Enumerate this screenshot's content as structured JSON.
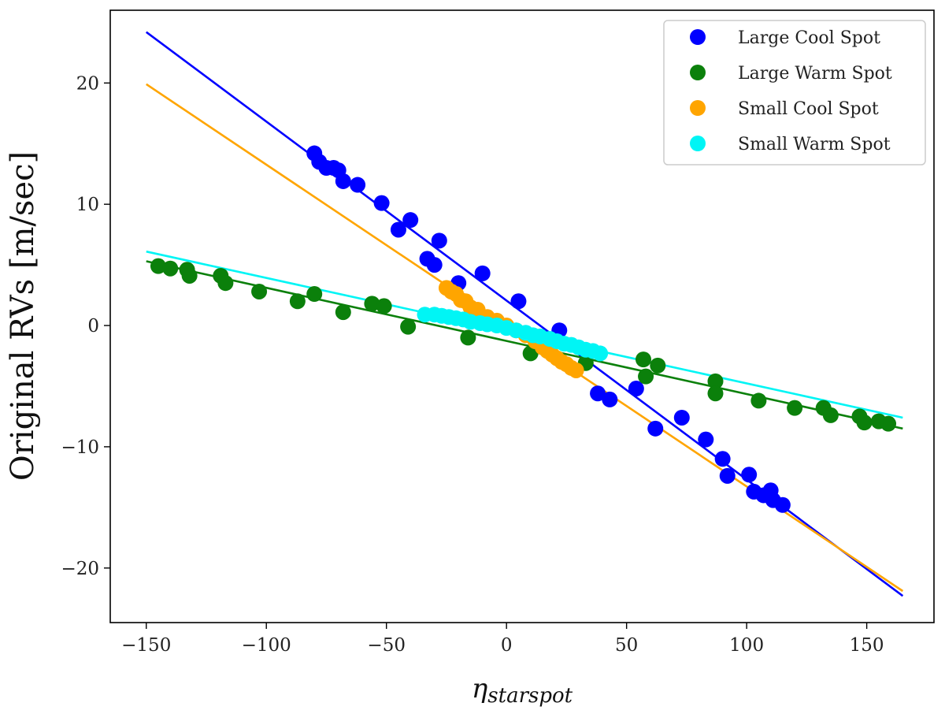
{
  "chart_data": {
    "type": "scatter",
    "title": "",
    "xlabel": "η_starspot",
    "xlabel_main": "η",
    "xlabel_sub": "starspot",
    "ylabel": "Original RVs [m/sec]",
    "xlim": [
      -165,
      178
    ],
    "ylim": [
      -24.5,
      26
    ],
    "xticks": [
      -150,
      -100,
      -50,
      0,
      50,
      100,
      150
    ],
    "yticks": [
      -20,
      -10,
      0,
      10,
      20
    ],
    "xtick_labels": [
      "−150",
      "−100",
      "−50",
      "0",
      "50",
      "100",
      "150"
    ],
    "ytick_labels": [
      "−20",
      "−10",
      "0",
      "10",
      "20"
    ],
    "legend_position": "top-right",
    "series": [
      {
        "name": "Large Cool Spot",
        "color": "#0000ff",
        "fit_line": {
          "x": [
            -150,
            165
          ],
          "y": [
            24.2,
            -22.3
          ]
        },
        "points": [
          [
            -80,
            14.2
          ],
          [
            -78,
            13.5
          ],
          [
            -75,
            13.0
          ],
          [
            -72,
            13.0
          ],
          [
            -70,
            12.8
          ],
          [
            -68,
            11.9
          ],
          [
            -62,
            11.6
          ],
          [
            -52,
            10.1
          ],
          [
            -45,
            7.9
          ],
          [
            -40,
            8.7
          ],
          [
            -33,
            5.5
          ],
          [
            -30,
            5.0
          ],
          [
            -28,
            7.0
          ],
          [
            -20,
            3.5
          ],
          [
            -10,
            4.3
          ],
          [
            5,
            2.0
          ],
          [
            22,
            -0.4
          ],
          [
            38,
            -5.6
          ],
          [
            43,
            -6.1
          ],
          [
            54,
            -5.2
          ],
          [
            62,
            -8.5
          ],
          [
            73,
            -7.6
          ],
          [
            83,
            -9.4
          ],
          [
            90,
            -11.0
          ],
          [
            92,
            -12.4
          ],
          [
            101,
            -12.3
          ],
          [
            103,
            -13.7
          ],
          [
            107,
            -14.0
          ],
          [
            110,
            -13.6
          ],
          [
            111,
            -14.4
          ],
          [
            115,
            -14.8
          ]
        ]
      },
      {
        "name": "Large Warm Spot",
        "color": "#0b800b",
        "fit_line": {
          "x": [
            -150,
            165
          ],
          "y": [
            5.3,
            -8.5
          ]
        },
        "points": [
          [
            -145,
            4.9
          ],
          [
            -140,
            4.7
          ],
          [
            -133,
            4.6
          ],
          [
            -132,
            4.1
          ],
          [
            -119,
            4.1
          ],
          [
            -117,
            3.5
          ],
          [
            -103,
            2.8
          ],
          [
            -87,
            2.0
          ],
          [
            -80,
            2.6
          ],
          [
            -68,
            1.1
          ],
          [
            -56,
            1.8
          ],
          [
            -51,
            1.6
          ],
          [
            -41,
            -0.1
          ],
          [
            -16,
            -1.0
          ],
          [
            10,
            -2.3
          ],
          [
            33,
            -3.1
          ],
          [
            57,
            -2.8
          ],
          [
            58,
            -4.2
          ],
          [
            63,
            -3.3
          ],
          [
            87,
            -4.6
          ],
          [
            87,
            -5.6
          ],
          [
            105,
            -6.2
          ],
          [
            120,
            -6.8
          ],
          [
            132,
            -6.8
          ],
          [
            135,
            -7.4
          ],
          [
            147,
            -7.5
          ],
          [
            149,
            -8.0
          ],
          [
            155,
            -7.9
          ],
          [
            159,
            -8.1
          ]
        ]
      },
      {
        "name": "Small Cool Spot",
        "color": "#ffa500",
        "fit_line": {
          "x": [
            -150,
            165
          ],
          "y": [
            19.9,
            -21.9
          ]
        },
        "points": [
          [
            -25,
            3.1
          ],
          [
            -23,
            2.8
          ],
          [
            -21,
            2.6
          ],
          [
            -19,
            2.1
          ],
          [
            -17,
            2.0
          ],
          [
            -15,
            1.5
          ],
          [
            -12,
            1.3
          ],
          [
            -8,
            0.7
          ],
          [
            -4,
            0.4
          ],
          [
            0,
            0.0
          ],
          [
            4,
            -0.4
          ],
          [
            8,
            -0.8
          ],
          [
            12,
            -1.3
          ],
          [
            15,
            -1.8
          ],
          [
            17,
            -2.1
          ],
          [
            19,
            -2.4
          ],
          [
            21,
            -2.7
          ],
          [
            23,
            -3.0
          ],
          [
            25,
            -3.2
          ],
          [
            27,
            -3.5
          ],
          [
            29,
            -3.7
          ]
        ]
      },
      {
        "name": "Small Warm Spot",
        "color": "#00f5f5",
        "fit_line": {
          "x": [
            -150,
            165
          ],
          "y": [
            6.1,
            -7.6
          ]
        },
        "points": [
          [
            -34,
            0.9
          ],
          [
            -30,
            0.9
          ],
          [
            -27,
            0.8
          ],
          [
            -24,
            0.7
          ],
          [
            -21,
            0.6
          ],
          [
            -18,
            0.5
          ],
          [
            -15,
            0.3
          ],
          [
            -11,
            0.2
          ],
          [
            -8,
            0.1
          ],
          [
            -4,
            0.0
          ],
          [
            0,
            -0.2
          ],
          [
            4,
            -0.4
          ],
          [
            8,
            -0.6
          ],
          [
            11,
            -0.8
          ],
          [
            14,
            -0.9
          ],
          [
            18,
            -1.1
          ],
          [
            21,
            -1.3
          ],
          [
            24,
            -1.5
          ],
          [
            27,
            -1.6
          ],
          [
            30,
            -1.8
          ],
          [
            33,
            -2.0
          ],
          [
            36,
            -2.1
          ],
          [
            39,
            -2.3
          ]
        ]
      }
    ]
  }
}
